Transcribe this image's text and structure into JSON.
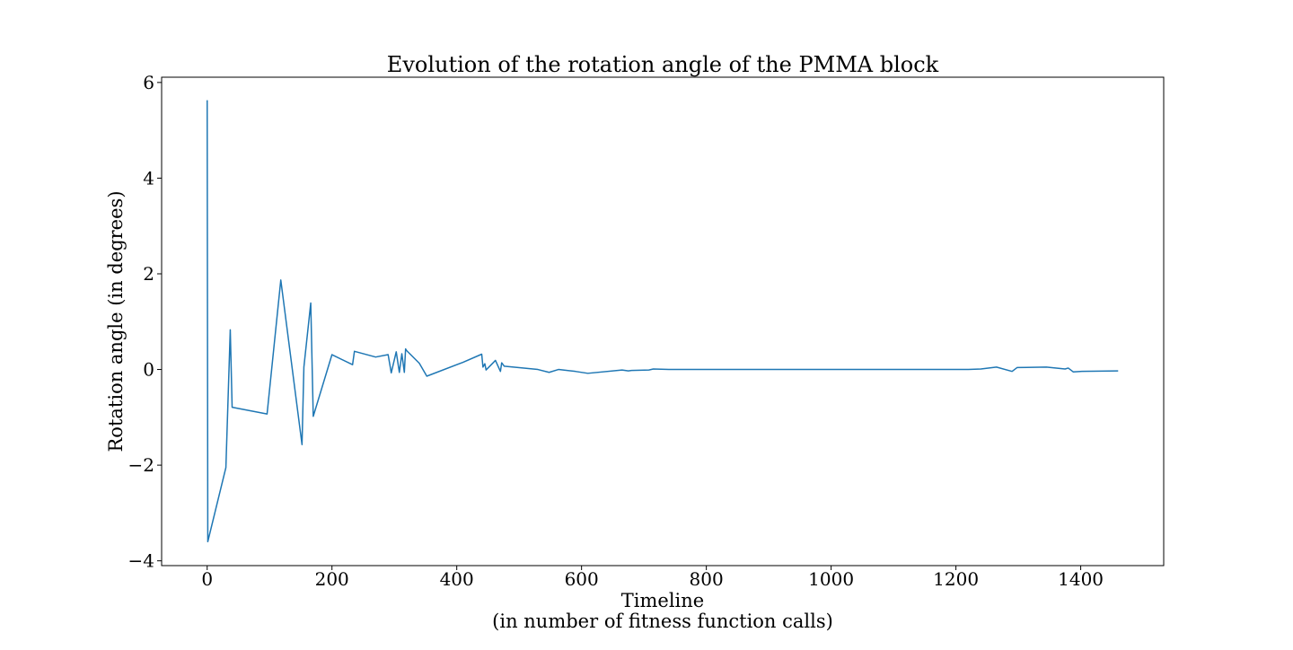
{
  "chart_data": {
    "type": "line",
    "title": "Evolution of the rotation angle of the PMMA block",
    "xlabel": [
      "Timeline",
      "(in number of fitness function calls)"
    ],
    "ylabel": "Rotation angle (in degrees)",
    "xlim": [
      -73,
      1533
    ],
    "ylim": [
      -4.1,
      6.11
    ],
    "xticks": [
      0,
      200,
      400,
      600,
      800,
      1000,
      1200,
      1400
    ],
    "yticks": [
      -4,
      -2,
      0,
      2,
      4,
      6
    ],
    "xtick_labels": [
      "0",
      "200",
      "400",
      "600",
      "800",
      "1000",
      "1200",
      "1400"
    ],
    "ytick_labels": [
      "−4",
      "−2",
      "0",
      "2",
      "4",
      "6"
    ],
    "grid": false,
    "line_color": "#1f77b4",
    "series": [
      {
        "x": [
          0,
          1,
          30,
          37,
          40,
          96,
          118,
          152,
          155,
          166,
          170,
          200,
          233,
          236,
          270,
          290,
          295,
          303,
          308,
          312,
          316,
          318,
          320,
          340,
          352,
          410,
          440,
          442,
          445,
          447,
          462,
          470,
          472,
          476,
          530,
          548,
          563,
          590,
          610,
          665,
          675,
          680,
          708,
          715,
          740,
          1000,
          1220,
          1240,
          1265,
          1290,
          1298,
          1345,
          1375,
          1380,
          1388,
          1402,
          1460
        ],
        "y": [
          5.63,
          -3.6,
          -2.05,
          0.83,
          -0.79,
          -0.93,
          1.87,
          -1.57,
          0.05,
          1.39,
          -0.98,
          0.31,
          0.1,
          0.38,
          0.26,
          0.31,
          -0.07,
          0.37,
          -0.06,
          0.33,
          -0.06,
          0.43,
          0.39,
          0.13,
          -0.14,
          0.15,
          0.32,
          0.05,
          0.12,
          -0.01,
          0.19,
          -0.04,
          0.14,
          0.07,
          0.0,
          -0.06,
          0.0,
          -0.04,
          -0.08,
          -0.01,
          -0.03,
          -0.02,
          -0.01,
          0.01,
          0.0,
          0.0,
          0.0,
          0.01,
          0.05,
          -0.04,
          0.04,
          0.05,
          0.01,
          0.03,
          -0.05,
          -0.04,
          -0.03
        ]
      }
    ]
  }
}
